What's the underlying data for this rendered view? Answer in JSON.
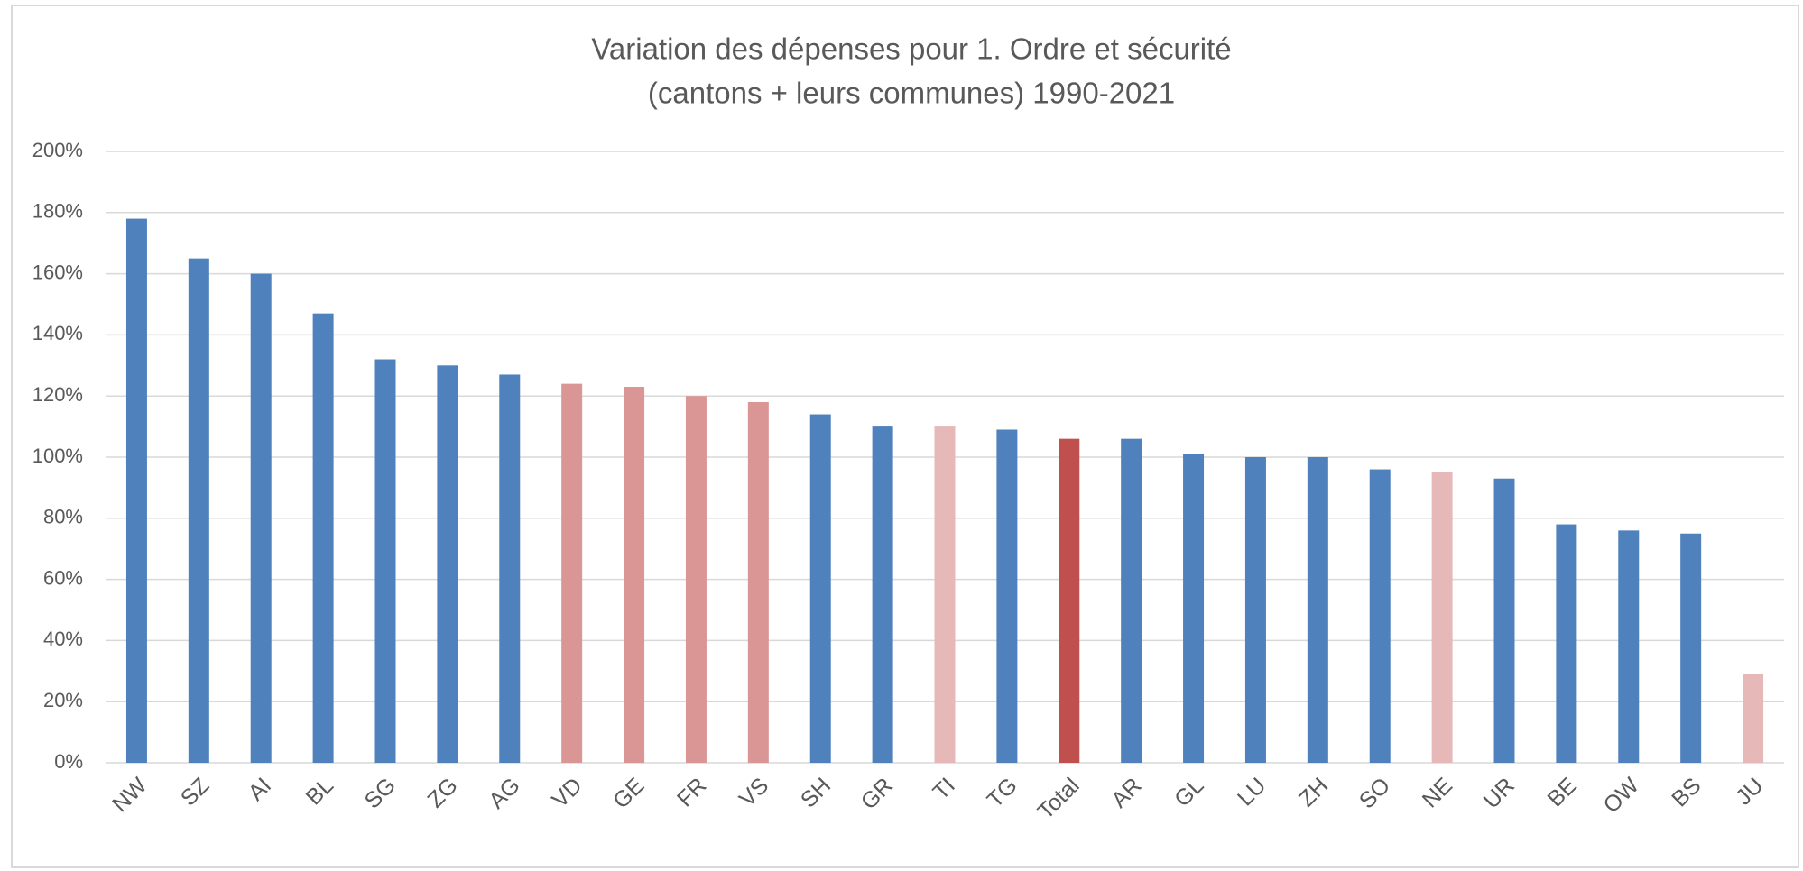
{
  "chart_data": {
    "type": "bar",
    "title": [
      "Variation des dépenses pour 1. Ordre et sécurité",
      "(cantons + leurs communes) 1990-2021"
    ],
    "categories": [
      "NW",
      "SZ",
      "AI",
      "BL",
      "SG",
      "ZG",
      "AG",
      "VD",
      "GE",
      "FR",
      "VS",
      "SH",
      "GR",
      "TI",
      "TG",
      "Total",
      "AR",
      "GL",
      "LU",
      "ZH",
      "SO",
      "NE",
      "UR",
      "BE",
      "OW",
      "BS",
      "JU"
    ],
    "values": [
      178,
      165,
      160,
      147,
      132,
      130,
      127,
      124,
      123,
      120,
      118,
      114,
      110,
      110,
      109,
      106,
      106,
      101,
      100,
      100,
      96,
      95,
      93,
      78,
      76,
      75,
      29
    ],
    "colors": [
      "#4f81bd",
      "#4f81bd",
      "#4f81bd",
      "#4f81bd",
      "#4f81bd",
      "#4f81bd",
      "#4f81bd",
      "#d99694",
      "#d99694",
      "#d99694",
      "#d99694",
      "#4f81bd",
      "#4f81bd",
      "#e6b9b8",
      "#4f81bd",
      "#c0504d",
      "#4f81bd",
      "#4f81bd",
      "#4f81bd",
      "#4f81bd",
      "#4f81bd",
      "#e6b9b8",
      "#4f81bd",
      "#4f81bd",
      "#4f81bd",
      "#4f81bd",
      "#e6b9b8"
    ],
    "ylim": [
      0,
      200
    ],
    "yticks": [
      {
        "value": 0,
        "label": "0%"
      },
      {
        "value": 20,
        "label": "20%"
      },
      {
        "value": 40,
        "label": "40%"
      },
      {
        "value": 60,
        "label": "60%"
      },
      {
        "value": 80,
        "label": "80%"
      },
      {
        "value": 100,
        "label": "100%"
      },
      {
        "value": 120,
        "label": "120%"
      },
      {
        "value": 140,
        "label": "140%"
      },
      {
        "value": 160,
        "label": "160%"
      },
      {
        "value": 180,
        "label": "180%"
      },
      {
        "value": 200,
        "label": "200%"
      }
    ],
    "grid": true
  }
}
